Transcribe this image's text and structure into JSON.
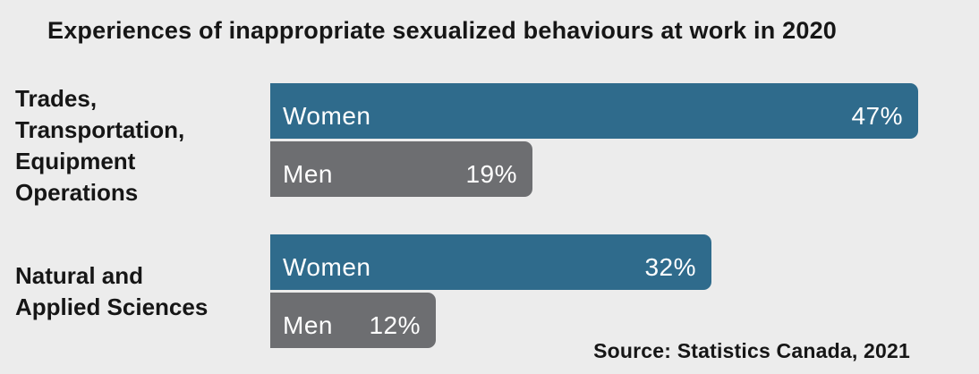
{
  "title": "Experiences of inappropriate sexualized behaviours at work in 2020",
  "source": "Source: Statistics Canada, 2021",
  "colors": {
    "women": "#2F6B8C",
    "men": "#6D6E71",
    "background": "#ECECEC",
    "bar_text": "#FFFFFF",
    "heading_text": "#161616"
  },
  "chart_data": {
    "type": "bar",
    "orientation": "horizontal",
    "title": "Experiences of inappropriate sexualized behaviours at work in 2020",
    "categories": [
      "Trades, Transportation, Equipment Operations",
      "Natural and Applied Sciences"
    ],
    "series": [
      {
        "name": "Women",
        "values": [
          47,
          32
        ],
        "color": "#2F6B8C"
      },
      {
        "name": "Men",
        "values": [
          19,
          12
        ],
        "color": "#6D6E71"
      }
    ],
    "value_suffix": "%",
    "xlim": [
      0,
      50
    ],
    "grid": false,
    "legend_position": "labels-inside-bars",
    "value_labels_position": "inside-end",
    "source": "Source: Statistics Canada, 2021"
  },
  "groups": [
    {
      "label_lines": [
        "Trades,",
        "Transportation,",
        "Equipment",
        "Operations"
      ],
      "bars": [
        {
          "series": "Women",
          "value": 47,
          "display": "47%"
        },
        {
          "series": "Men",
          "value": 19,
          "display": "19%"
        }
      ]
    },
    {
      "label_lines": [
        "Natural and",
        "Applied Sciences"
      ],
      "bars": [
        {
          "series": "Women",
          "value": 32,
          "display": "32%"
        },
        {
          "series": "Men",
          "value": 12,
          "display": "12%"
        }
      ]
    }
  ]
}
